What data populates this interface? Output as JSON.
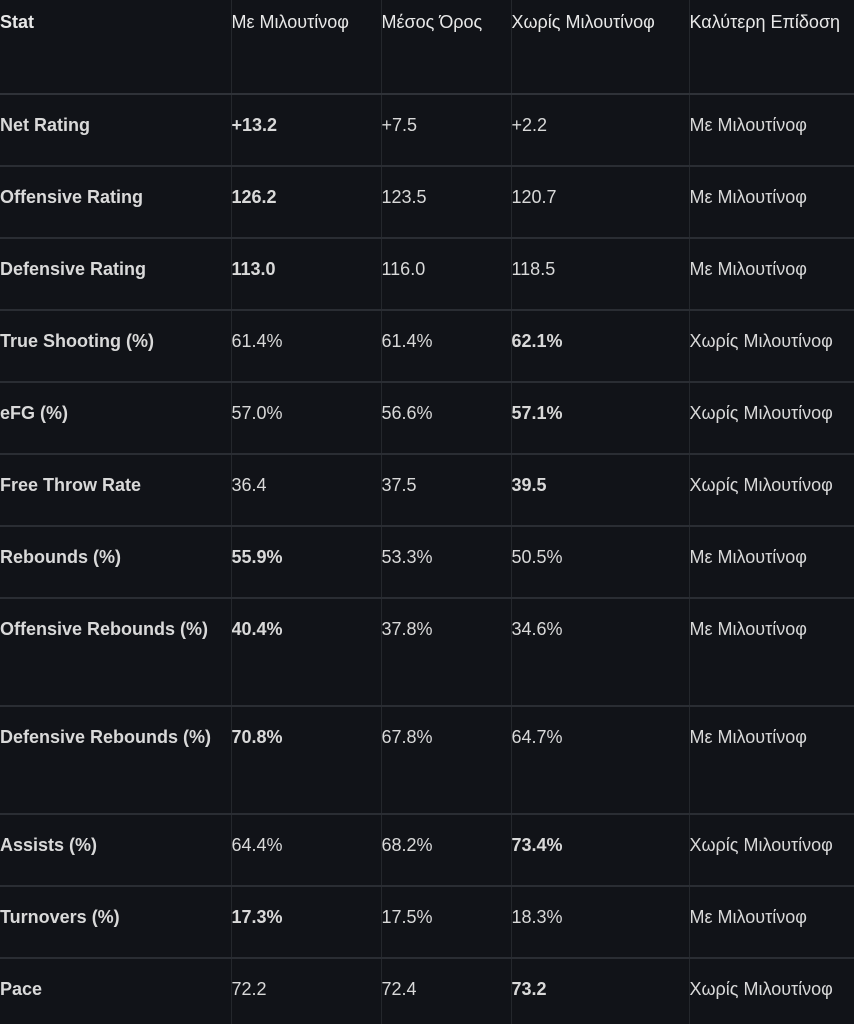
{
  "headers": [
    "Stat",
    "Με Μιλουτίνοφ",
    "Μέσος Όρος",
    "Χωρίς Μιλουτίνοφ",
    "Καλύτερη Επίδοση"
  ],
  "rows": [
    {
      "stat": "Net Rating",
      "with": "+13.2",
      "avg": "+7.5",
      "without": "+2.2",
      "best": "Με Μιλουτίνοφ",
      "bold": "with",
      "tall": false
    },
    {
      "stat": "Offensive Rating",
      "with": "126.2",
      "avg": "123.5",
      "without": "120.7",
      "best": "Με Μιλουτίνοφ",
      "bold": "with",
      "tall": false
    },
    {
      "stat": "Defensive Rating",
      "with": "113.0",
      "avg": "116.0",
      "without": "118.5",
      "best": "Με Μιλουτίνοφ",
      "bold": "with",
      "tall": false
    },
    {
      "stat": "True Shooting (%)",
      "with": "61.4%",
      "avg": "61.4%",
      "without": "62.1%",
      "best": "Χωρίς Μιλουτίνοφ",
      "bold": "without",
      "tall": false
    },
    {
      "stat": "eFG (%)",
      "with": "57.0%",
      "avg": "56.6%",
      "without": "57.1%",
      "best": "Χωρίς Μιλουτίνοφ",
      "bold": "without",
      "tall": false
    },
    {
      "stat": "Free Throw Rate",
      "with": "36.4",
      "avg": "37.5",
      "without": "39.5",
      "best": "Χωρίς Μιλουτίνοφ",
      "bold": "without",
      "tall": false
    },
    {
      "stat": "Rebounds (%)",
      "with": "55.9%",
      "avg": "53.3%",
      "without": "50.5%",
      "best": "Με Μιλουτίνοφ",
      "bold": "with",
      "tall": false
    },
    {
      "stat": "Offensive Rebounds (%)",
      "with": "40.4%",
      "avg": "37.8%",
      "without": "34.6%",
      "best": "Με Μιλουτίνοφ",
      "bold": "with",
      "tall": true
    },
    {
      "stat": "Defensive Rebounds (%)",
      "with": "70.8%",
      "avg": "67.8%",
      "without": "64.7%",
      "best": "Με Μιλουτίνοφ",
      "bold": "with",
      "tall": true
    },
    {
      "stat": "Assists (%)",
      "with": "64.4%",
      "avg": "68.2%",
      "without": "73.4%",
      "best": "Χωρίς Μιλουτίνοφ",
      "bold": "without",
      "tall": false
    },
    {
      "stat": "Turnovers (%)",
      "with": "17.3%",
      "avg": "17.5%",
      "without": "18.3%",
      "best": "Με Μιλουτίνοφ",
      "bold": "with",
      "tall": false
    },
    {
      "stat": "Pace",
      "with": "72.2",
      "avg": "72.4",
      "without": "73.2",
      "best": "Χωρίς Μιλουτίνοφ",
      "bold": "without",
      "tall": false
    }
  ],
  "colors": {
    "background": "#111318",
    "text": "#d9d9d9",
    "divider": "#2a2d33"
  }
}
